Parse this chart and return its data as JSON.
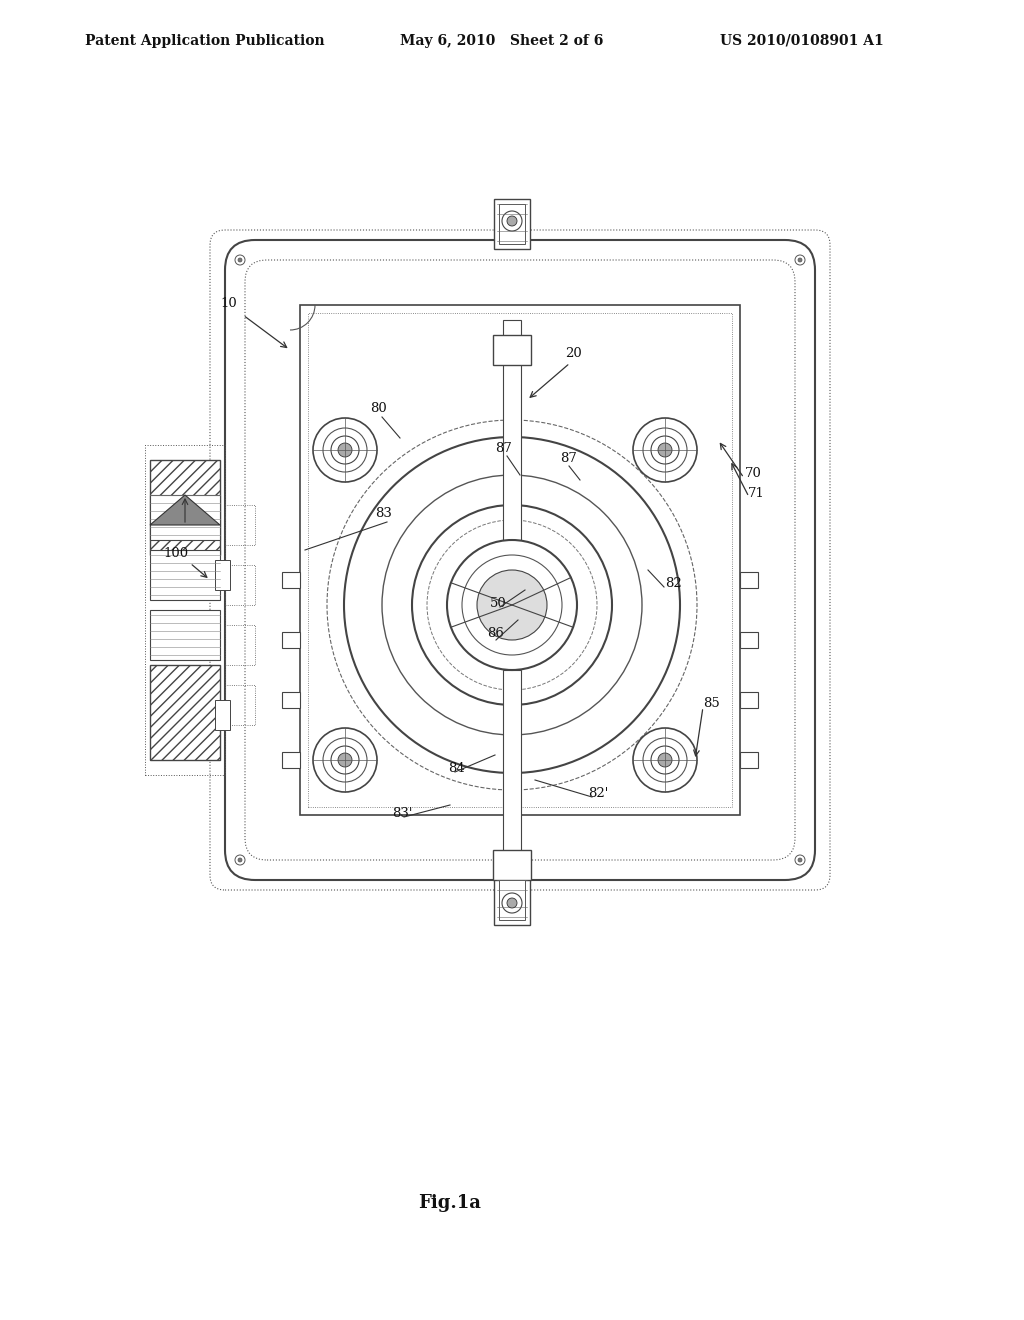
{
  "header_left": "Patent Application Publication",
  "header_mid": "May 6, 2010   Sheet 2 of 6",
  "header_right": "US 2010/0108901 A1",
  "fig_label": "Fig.1a",
  "background_color": "#ffffff",
  "line_color": "#333333",
  "draw_color": "#555555"
}
